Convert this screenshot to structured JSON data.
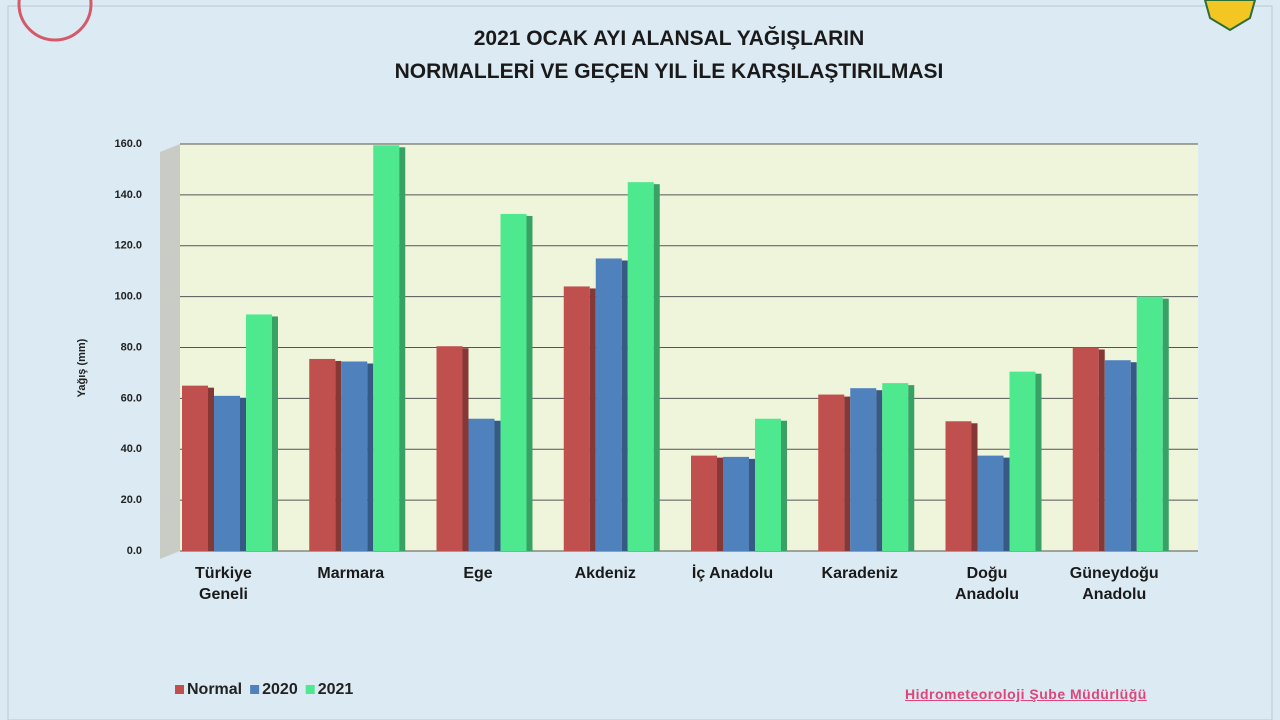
{
  "chart_data": {
    "type": "bar",
    "title": "2021 OCAK AYI ALANSAL YAĞIŞLARIN\nNORMALLERİ VE GEÇEN YIL İLE KARŞILAŞTIRILMASI",
    "y_label": "Yağış (mm)",
    "footer": "Hidrometeoroloji Şube Müdürlüğü",
    "categories": [
      "Türkiye\nGeneli",
      "Marmara",
      "Ege",
      "Akdeniz",
      "İç Anadolu",
      "Karadeniz",
      "Doğu\nAnadolu",
      "Güneydoğu\nAnadolu"
    ],
    "series": [
      {
        "name": "Normal",
        "color": "#c0504d",
        "values": [
          65,
          75.5,
          80.5,
          104,
          37.5,
          61.5,
          51,
          80
        ]
      },
      {
        "name": "2020",
        "color": "#4f81bd",
        "values": [
          61,
          74.5,
          52,
          115,
          37,
          64,
          37.5,
          75
        ]
      },
      {
        "name": "2021",
        "color": "#4ee88f",
        "values": [
          93,
          159.5,
          132.5,
          145,
          52,
          66,
          70.5,
          100
        ]
      }
    ],
    "ylim": [
      0,
      160
    ],
    "yticks": [
      {
        "value": 0,
        "label": "0.0"
      },
      {
        "value": 20,
        "label": "20.0"
      },
      {
        "value": 40,
        "label": "40.0"
      },
      {
        "value": 60,
        "label": "60.0"
      },
      {
        "value": 80,
        "label": "80.0"
      },
      {
        "value": 100,
        "label": "100.0"
      },
      {
        "value": 120,
        "label": "120.0"
      },
      {
        "value": 140,
        "label": "140.0"
      },
      {
        "value": 160,
        "label": "160.0"
      }
    ],
    "grid": true
  }
}
